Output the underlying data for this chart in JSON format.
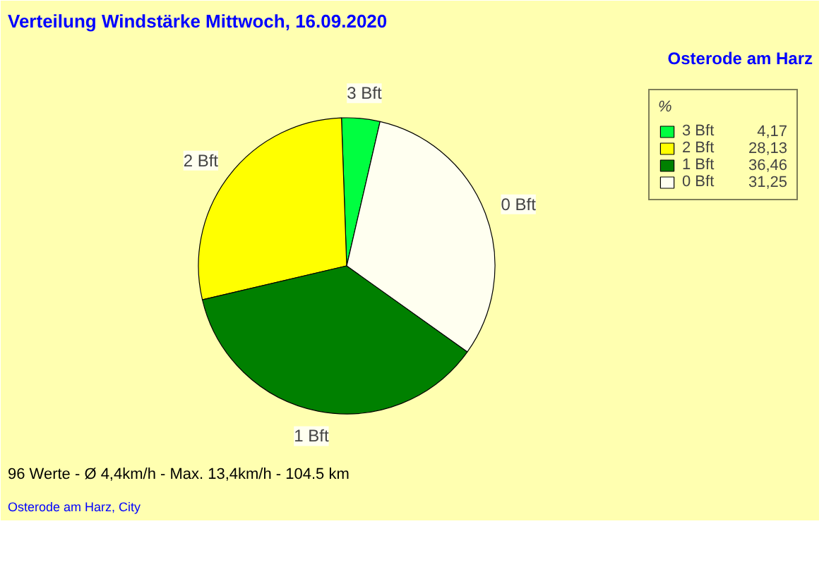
{
  "chart_data": {
    "type": "pie",
    "title": "Verteilung Windstärke  Mittwoch, 16.09.2020",
    "subtitle": "Osterode am Harz",
    "categories": [
      "3 Bft",
      "2 Bft",
      "1 Bft",
      "0 Bft"
    ],
    "values": [
      4.17,
      28.13,
      36.46,
      31.25
    ],
    "value_labels": [
      "4,17",
      "28,13",
      "36,46",
      "31,25"
    ],
    "colors": [
      "#00ff40",
      "#ffff00",
      "#008000",
      "#fffff0"
    ],
    "legend": "top right",
    "legend_title": "%",
    "annotations": [
      "96 Werte   -   Ø 4,4km/h  -  Max. 13,4km/h   -   104.5 km",
      "Osterode am Harz, City"
    ]
  }
}
